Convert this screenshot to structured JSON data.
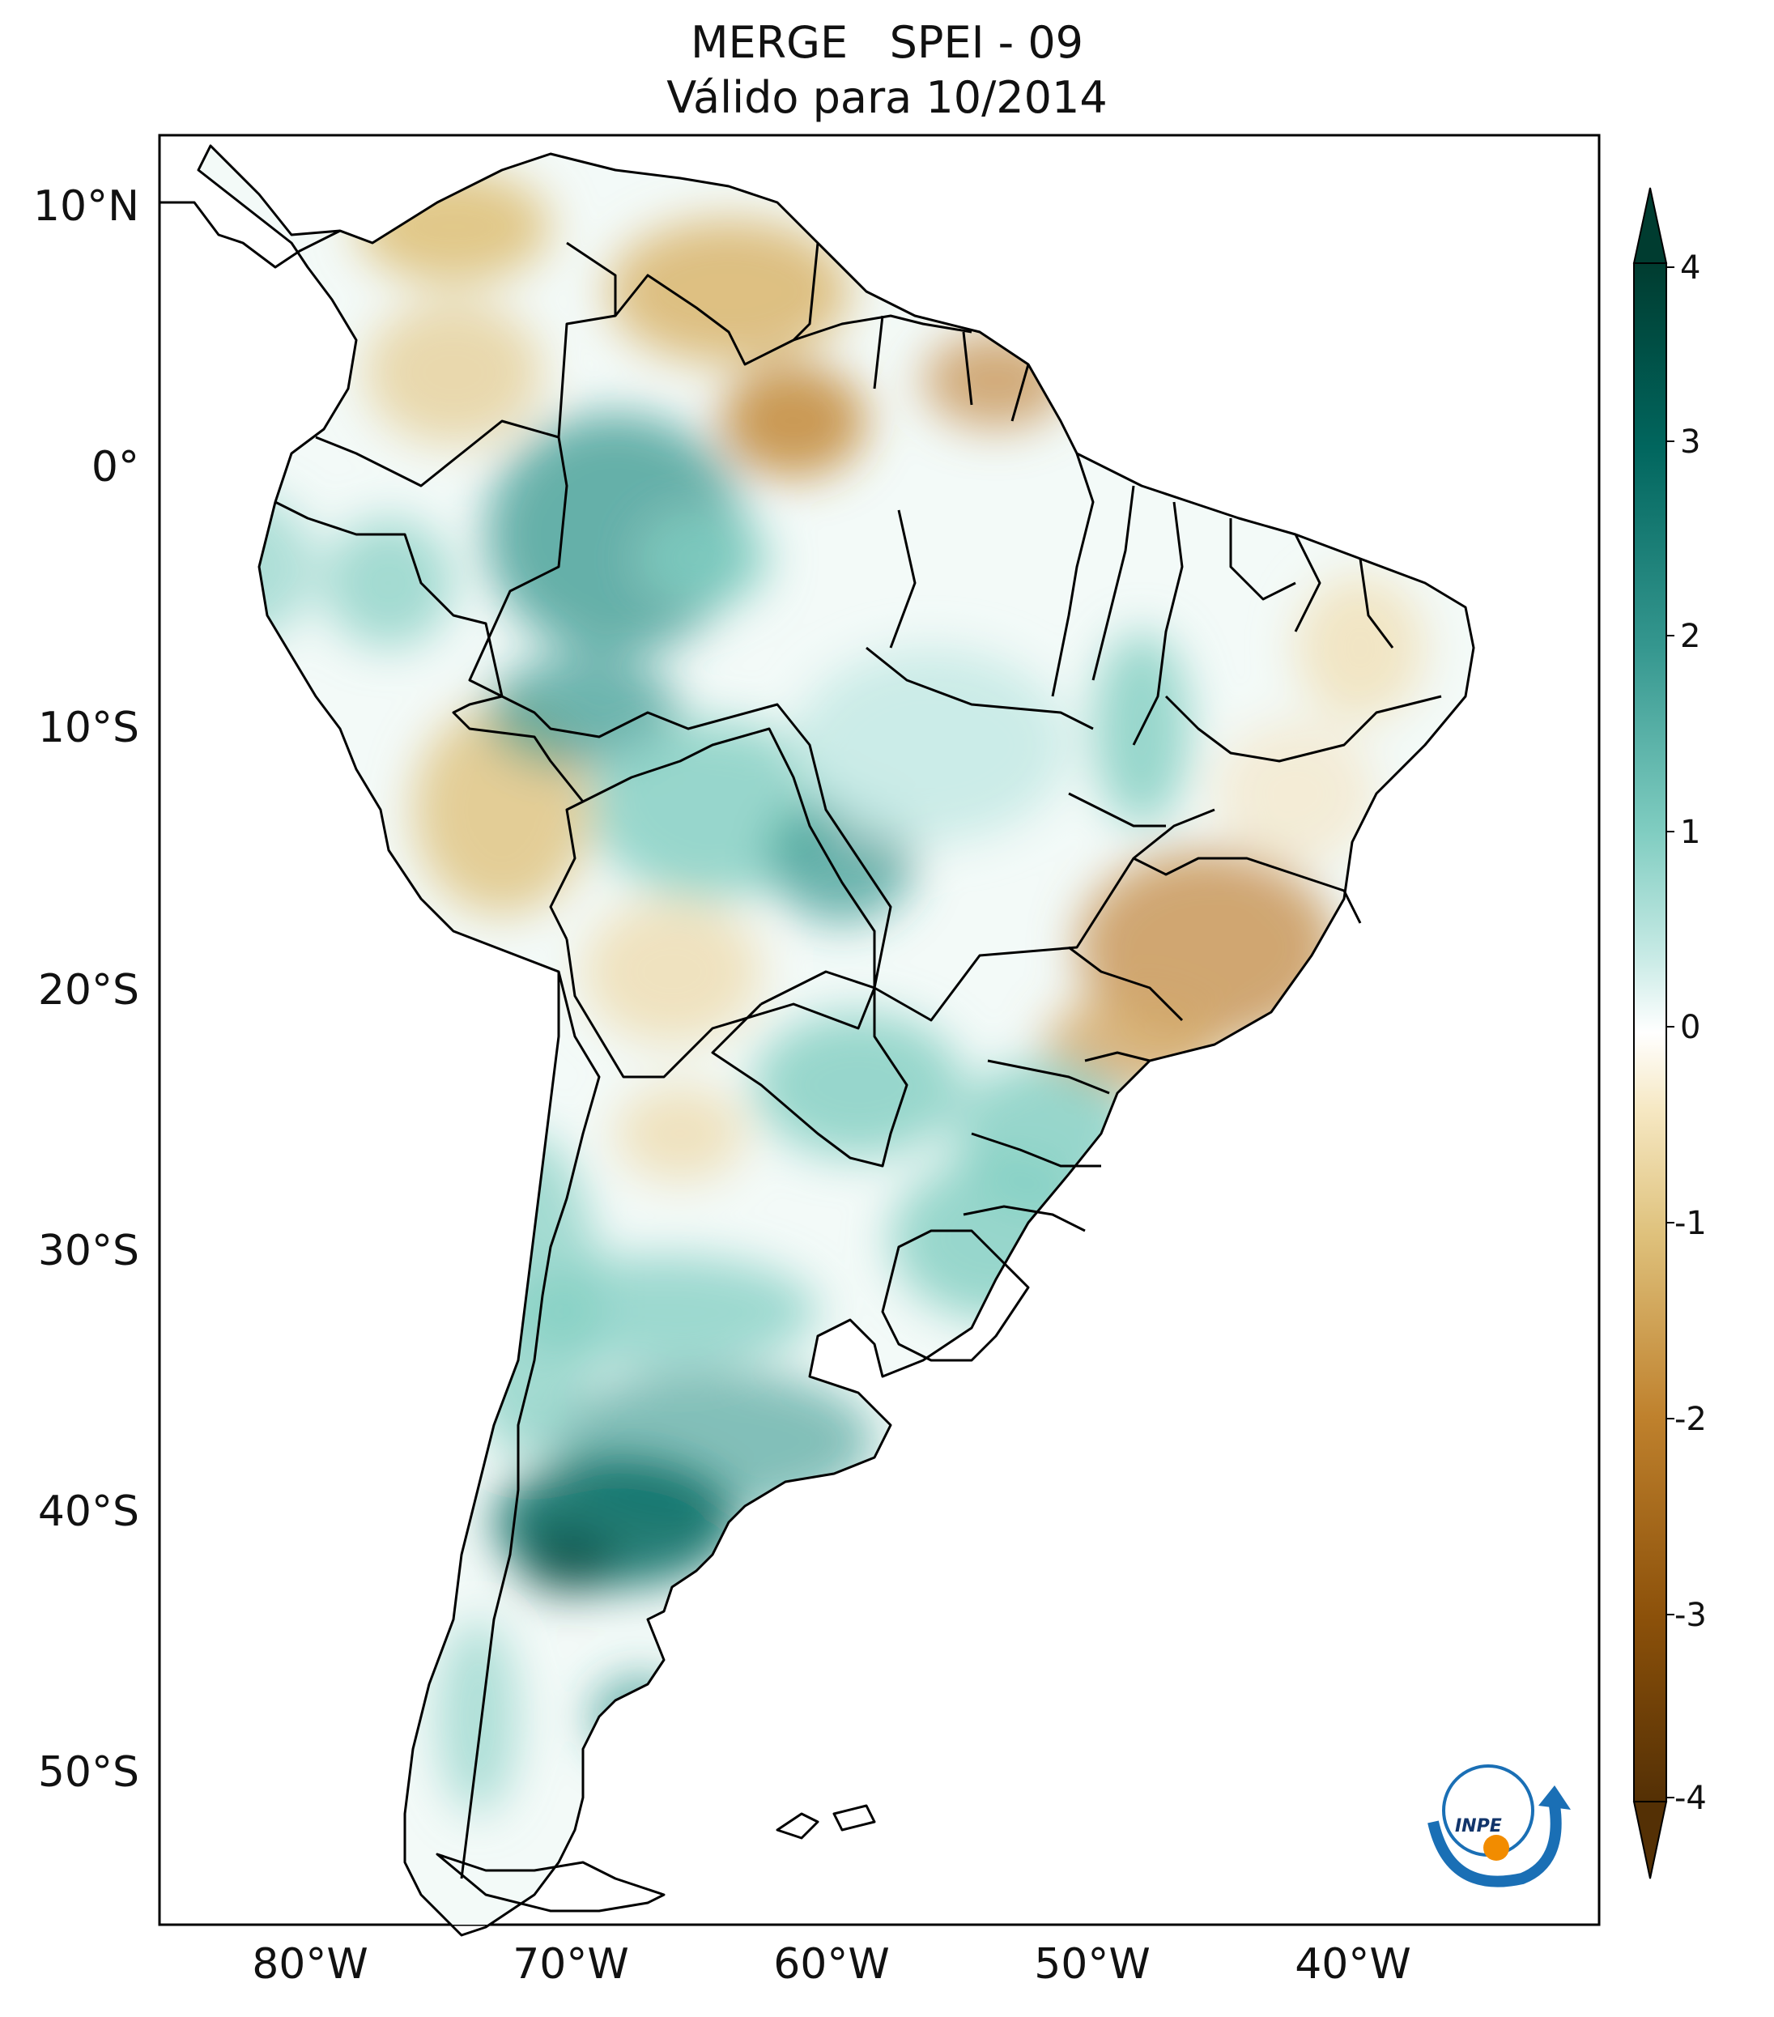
{
  "header": {
    "title_line1": "MERGE   SPEI - 09",
    "title_line2": "Válido para 10/2014"
  },
  "map": {
    "lat_ticks": [
      "10°N",
      "0°",
      "10°S",
      "20°S",
      "30°S",
      "40°S",
      "50°S"
    ],
    "lon_ticks": [
      "80°W",
      "70°W",
      "60°W",
      "50°W",
      "40°W"
    ],
    "lon_range": [
      -85.0,
      -30.0
    ],
    "lat_range": [
      -56.0,
      12.5
    ],
    "region": "South America",
    "colormap_dry": "#8c510a",
    "colormap_wet": "#01665e"
  },
  "colorbar": {
    "ticks": [
      "4",
      "3",
      "2",
      "1",
      "0",
      "-1",
      "-2",
      "-3",
      "-4"
    ],
    "range": [
      -4,
      4
    ],
    "extend": "both",
    "colors": [
      "#543005",
      "#8c510a",
      "#bf812d",
      "#dfc27d",
      "#f6e8c3",
      "#ffffff",
      "#c7eae5",
      "#80cdc1",
      "#35978f",
      "#01665e",
      "#003c30"
    ]
  },
  "logo": {
    "text": "INPE",
    "colors": [
      "#1a6fb5",
      "#f28c00"
    ]
  }
}
